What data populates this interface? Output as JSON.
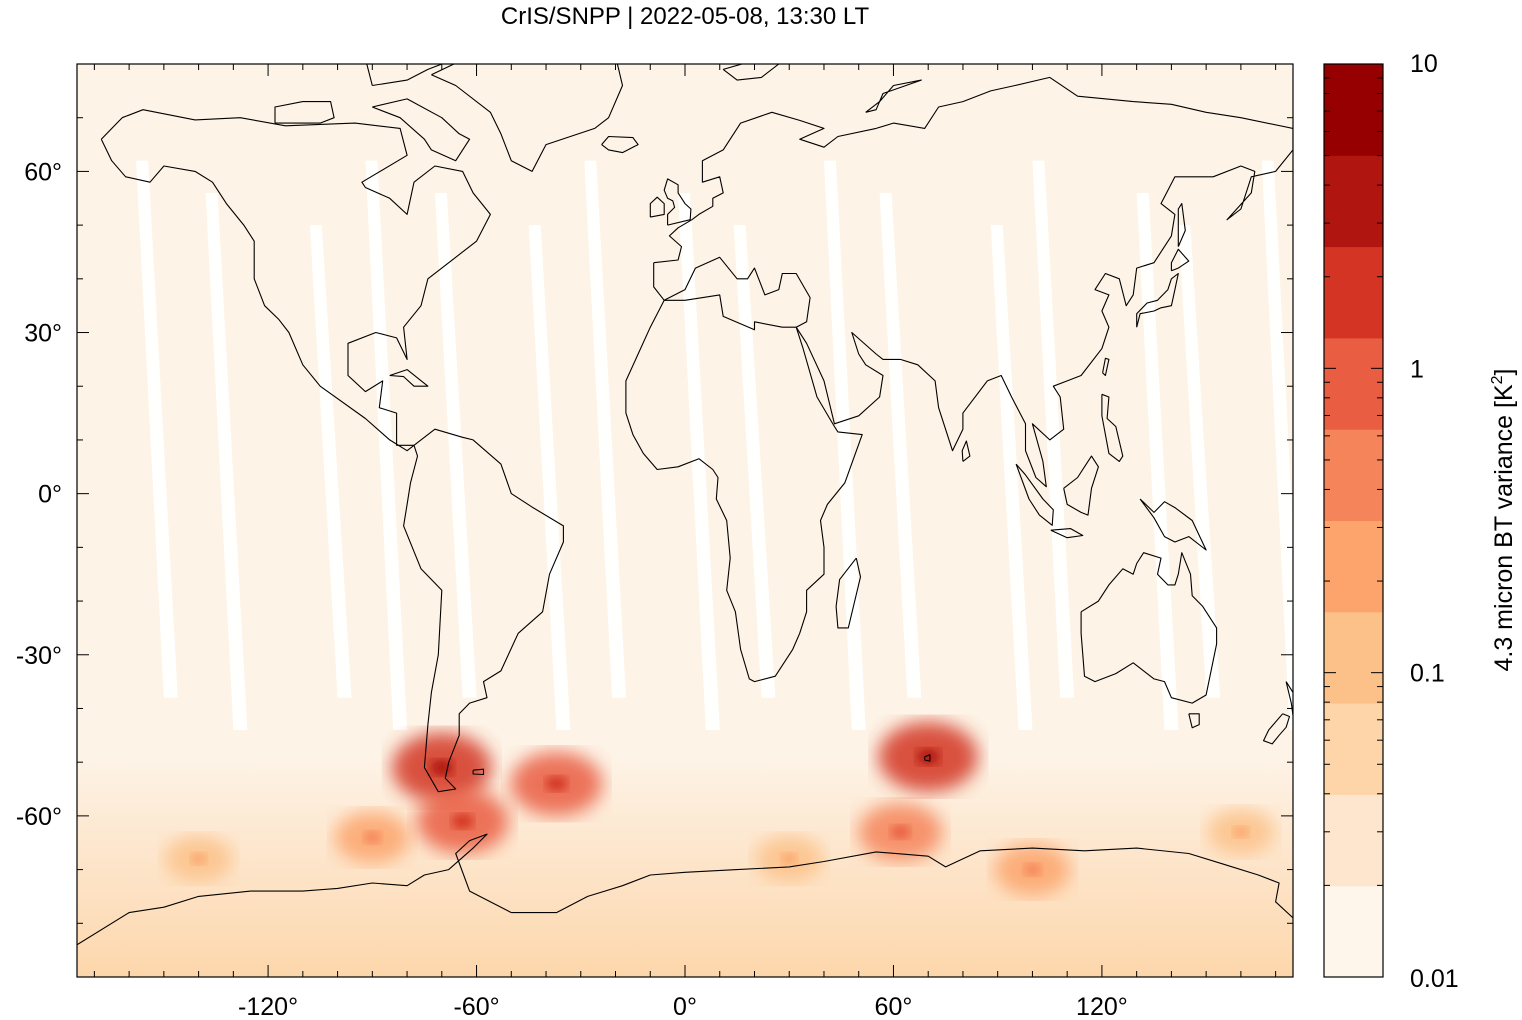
{
  "chart_data": {
    "type": "heatmap",
    "title": "CrIS/SNPP | 2022-05-08, 13:30 LT",
    "map_projection": "equirectangular",
    "xlim": [
      -175,
      175
    ],
    "ylim": [
      -90,
      80
    ],
    "x_ticks": [
      -120,
      -60,
      0,
      60,
      120
    ],
    "y_ticks": [
      60,
      30,
      0,
      -30,
      -60
    ],
    "x_tick_labels": [
      "-120°",
      "-60°",
      "0°",
      "60°",
      "120°"
    ],
    "y_tick_labels": [
      "60°",
      "30°",
      "0°",
      "-30°",
      "-60°"
    ],
    "colorbar": {
      "label": "4.3 micron BT variance [K",
      "label_superscript": "2",
      "label_suffix": "]",
      "scale": "log",
      "range": [
        0.01,
        10
      ],
      "tick_labels": [
        "10",
        "1",
        "0.1",
        "0.01"
      ],
      "tick_values": [
        10,
        1,
        0.1,
        0.01
      ],
      "colors": [
        "#fef5eb",
        "#fde6cd",
        "#fdd5a8",
        "#fcc188",
        "#fca46c",
        "#f5845a",
        "#e95d42",
        "#d33424",
        "#b11510",
        "#970000"
      ]
    },
    "coastline_color": "#000000",
    "background_value_color": "#fdf3e6",
    "hotspots": [
      {
        "lon": -70,
        "lat": -51,
        "level": 7
      },
      {
        "lon": -64,
        "lat": -61,
        "level": 6
      },
      {
        "lon": -37,
        "lat": -54,
        "level": 6
      },
      {
        "lon": 70,
        "lat": -49,
        "level": 7
      },
      {
        "lon": 62,
        "lat": -63,
        "level": 5
      },
      {
        "lon": -90,
        "lat": -64,
        "level": 4
      },
      {
        "lon": 100,
        "lat": -70,
        "level": 4
      },
      {
        "lon": -140,
        "lat": -68,
        "level": 3
      },
      {
        "lon": 160,
        "lat": -63,
        "level": 3
      },
      {
        "lon": 30,
        "lat": -68,
        "level": 3
      }
    ]
  }
}
